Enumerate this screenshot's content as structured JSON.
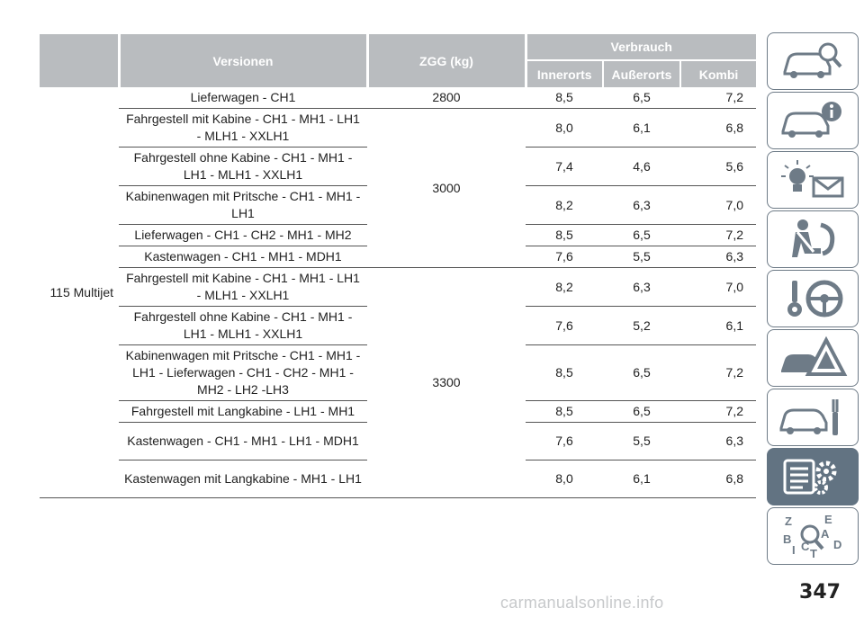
{
  "table": {
    "headers": {
      "versionen": "Versionen",
      "zgg": "ZGG (kg)",
      "verbrauch": "Verbrauch",
      "innerorts": "Innerorts",
      "ausserorts": "Außerorts",
      "kombi": "Kombi"
    },
    "engine": "115 Multijet",
    "rows": [
      {
        "version": "Lieferwagen - CH1",
        "zgg": "2800",
        "inner": "8,5",
        "ausser": "6,5",
        "kombi": "7,2"
      },
      {
        "version": "Fahrgestell mit Kabine - CH1 - MH1 - LH1 - MLH1 - XXLH1",
        "inner": "8,0",
        "ausser": "6,1",
        "kombi": "6,8"
      },
      {
        "version": "Fahrgestell ohne Kabine - CH1 - MH1 - LH1 - MLH1 - XXLH1",
        "inner": "7,4",
        "ausser": "4,6",
        "kombi": "5,6"
      },
      {
        "version": "Kabinenwagen mit Pritsche - CH1 - MH1 - LH1",
        "inner": "8,2",
        "ausser": "6,3",
        "kombi": "7,0"
      },
      {
        "version": "Lieferwagen - CH1 - CH2 - MH1 - MH2",
        "inner": "8,5",
        "ausser": "6,5",
        "kombi": "7,2"
      },
      {
        "version": "Kastenwagen - CH1 - MH1 - MDH1",
        "inner": "7,6",
        "ausser": "5,5",
        "kombi": "6,3"
      },
      {
        "version": "Fahrgestell mit Kabine - CH1 - MH1 - LH1 - MLH1 - XXLH1",
        "inner": "8,2",
        "ausser": "6,3",
        "kombi": "7,0"
      },
      {
        "version": "Fahrgestell ohne Kabine - CH1 - MH1 - LH1 - MLH1 - XXLH1",
        "inner": "7,6",
        "ausser": "5,2",
        "kombi": "6,1"
      },
      {
        "version": "Kabinenwagen mit Pritsche - CH1 - MH1 - LH1 - Lieferwagen - CH1 - CH2 - MH1 - MH2 - LH2 -LH3",
        "inner": "8,5",
        "ausser": "6,5",
        "kombi": "7,2"
      },
      {
        "version": "Fahrgestell mit Langkabine - LH1 - MH1",
        "inner": "8,5",
        "ausser": "6,5",
        "kombi": "7,2"
      },
      {
        "version": "Kastenwagen - CH1 - MH1 - LH1 - MDH1",
        "inner": "7,6",
        "ausser": "5,5",
        "kombi": "6,3"
      },
      {
        "version": "Kastenwagen mit Langkabine - MH1 - LH1",
        "inner": "8,0",
        "ausser": "6,1",
        "kombi": "6,8"
      }
    ],
    "zgg_group_3000": "3000",
    "zgg_group_3300": "3300"
  },
  "sidebar": {
    "items": [
      {
        "icon": "car-search-icon"
      },
      {
        "icon": "car-info-icon"
      },
      {
        "icon": "warning-lights-icon"
      },
      {
        "icon": "seatbelt-airbag-icon"
      },
      {
        "icon": "steering-key-icon"
      },
      {
        "icon": "breakdown-triangle-icon"
      },
      {
        "icon": "car-service-icon"
      },
      {
        "icon": "technical-data-icon",
        "active": true
      },
      {
        "icon": "alphabetical-index-icon"
      }
    ],
    "accent_color": "#627382",
    "index_letters": [
      "Z",
      "E",
      "A",
      "B",
      "C",
      "D",
      "I",
      "T"
    ]
  },
  "page_number": "347",
  "watermark": "carmanualsonline.info"
}
